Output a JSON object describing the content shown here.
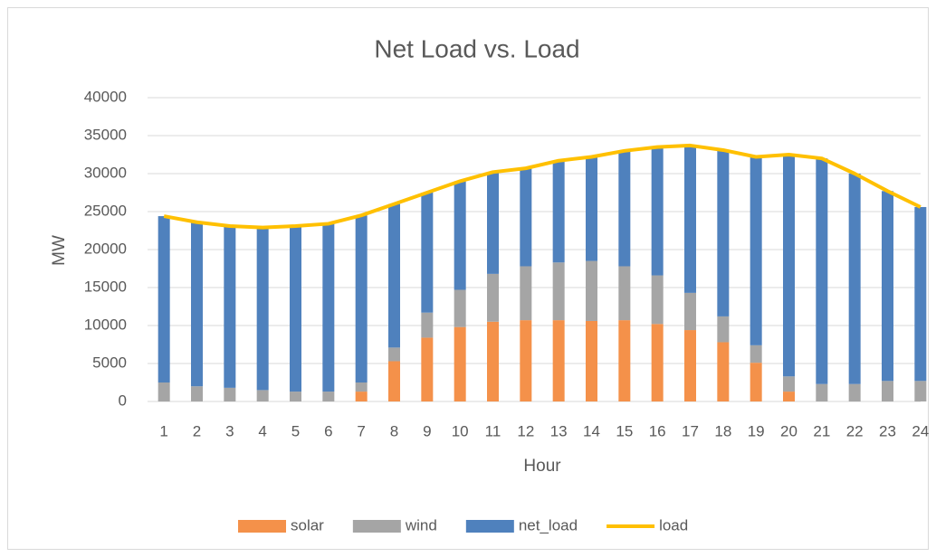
{
  "chart_data": {
    "type": "bar",
    "stacked": true,
    "title": "Net Load vs. Load",
    "x_label": "Hour",
    "y_label": "MW",
    "categories": [
      "1",
      "2",
      "3",
      "4",
      "5",
      "6",
      "7",
      "8",
      "9",
      "10",
      "11",
      "12",
      "13",
      "14",
      "15",
      "16",
      "17",
      "18",
      "19",
      "20",
      "21",
      "22",
      "23",
      "24"
    ],
    "series": [
      {
        "name": "solar",
        "type": "bar",
        "color": "#f4914a",
        "values": [
          0,
          0,
          0,
          0,
          0,
          0,
          1300,
          5300,
          8400,
          9800,
          10500,
          10700,
          10700,
          10600,
          10700,
          10200,
          9400,
          7800,
          5100,
          1300,
          0,
          0,
          0,
          0
        ]
      },
      {
        "name": "wind",
        "type": "bar",
        "color": "#a5a5a5",
        "values": [
          2500,
          2000,
          1800,
          1500,
          1300,
          1300,
          1200,
          1800,
          3300,
          4900,
          6300,
          7100,
          7600,
          7900,
          7100,
          6400,
          4900,
          3400,
          2300,
          2000,
          2300,
          2300,
          2700,
          2700
        ]
      },
      {
        "name": "net_load",
        "type": "bar",
        "color": "#4f81bd",
        "values": [
          21900,
          21600,
          21300,
          21400,
          21800,
          22100,
          22000,
          18900,
          15800,
          14300,
          13400,
          12900,
          13400,
          13700,
          15200,
          16900,
          19400,
          21900,
          24800,
          29200,
          29700,
          27700,
          25000,
          22900
        ]
      },
      {
        "name": "load",
        "type": "line",
        "color": "#ffc000",
        "values": [
          24400,
          23600,
          23100,
          22900,
          23100,
          23400,
          24500,
          26000,
          27500,
          29000,
          30200,
          30700,
          31700,
          32200,
          33000,
          33500,
          33700,
          33100,
          32200,
          32500,
          32000,
          30000,
          27700,
          25600
        ]
      }
    ],
    "ylim": [
      0,
      40000
    ],
    "yticks": [
      0,
      5000,
      10000,
      15000,
      20000,
      25000,
      30000,
      35000,
      40000
    ],
    "grid": true,
    "legend": "bottom"
  }
}
